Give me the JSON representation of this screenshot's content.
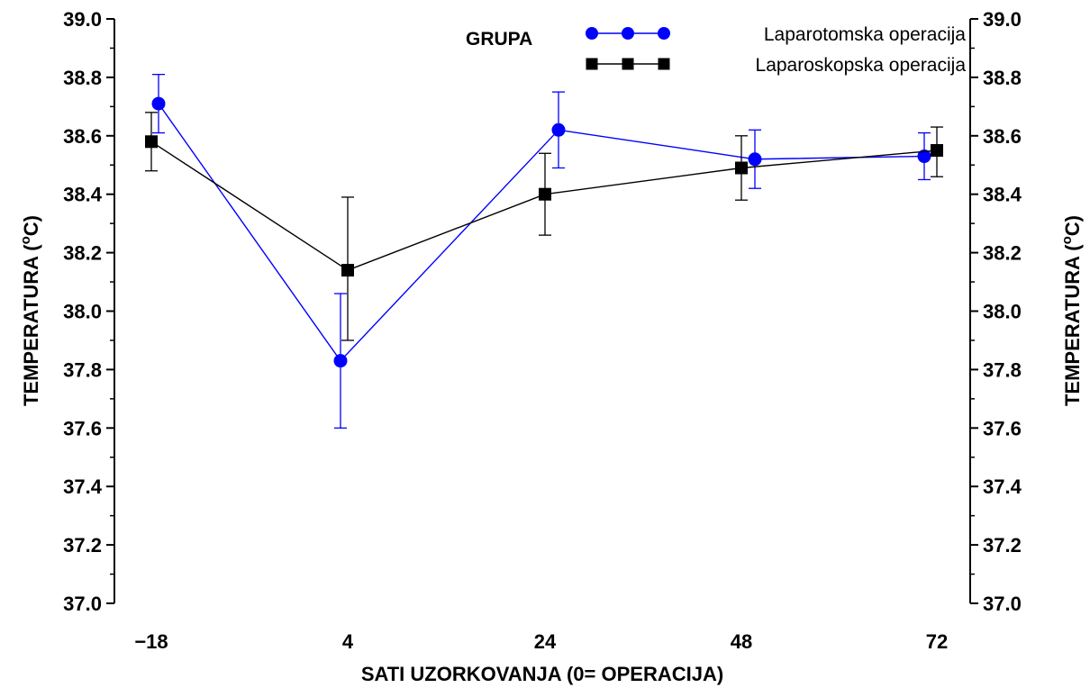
{
  "chart_data": {
    "type": "line",
    "xlabel": "SATI  UZORKOVANJA  (0= OPERACIJA)",
    "ylabel_parts": [
      "TEMPERATURA  (",
      "o",
      "C)"
    ],
    "categories": [
      "−18",
      "4",
      "24",
      "48",
      "72"
    ],
    "ylim": [
      37.0,
      39.0
    ],
    "yticks": [
      "37.0",
      "37.2",
      "37.4",
      "37.6",
      "37.8",
      "38.0",
      "38.2",
      "38.4",
      "38.6",
      "38.8",
      "39.0"
    ],
    "legend_title": "GRUPA",
    "legend_position": "top-right",
    "series": [
      {
        "name": "Laparotomska  operacija",
        "color": "#0000ff",
        "marker": "circle",
        "values": [
          38.71,
          37.83,
          38.62,
          38.52,
          38.53
        ],
        "err_low": [
          38.61,
          37.6,
          38.49,
          38.42,
          38.45
        ],
        "err_high": [
          38.81,
          38.06,
          38.75,
          38.62,
          38.61
        ]
      },
      {
        "name": "Laparoskopska  operacija",
        "color": "#000000",
        "marker": "square",
        "values": [
          38.58,
          38.14,
          38.4,
          38.49,
          38.55
        ],
        "err_low": [
          38.48,
          37.9,
          38.26,
          38.38,
          38.46
        ],
        "err_high": [
          38.68,
          38.39,
          38.54,
          38.6,
          38.63
        ]
      }
    ]
  }
}
